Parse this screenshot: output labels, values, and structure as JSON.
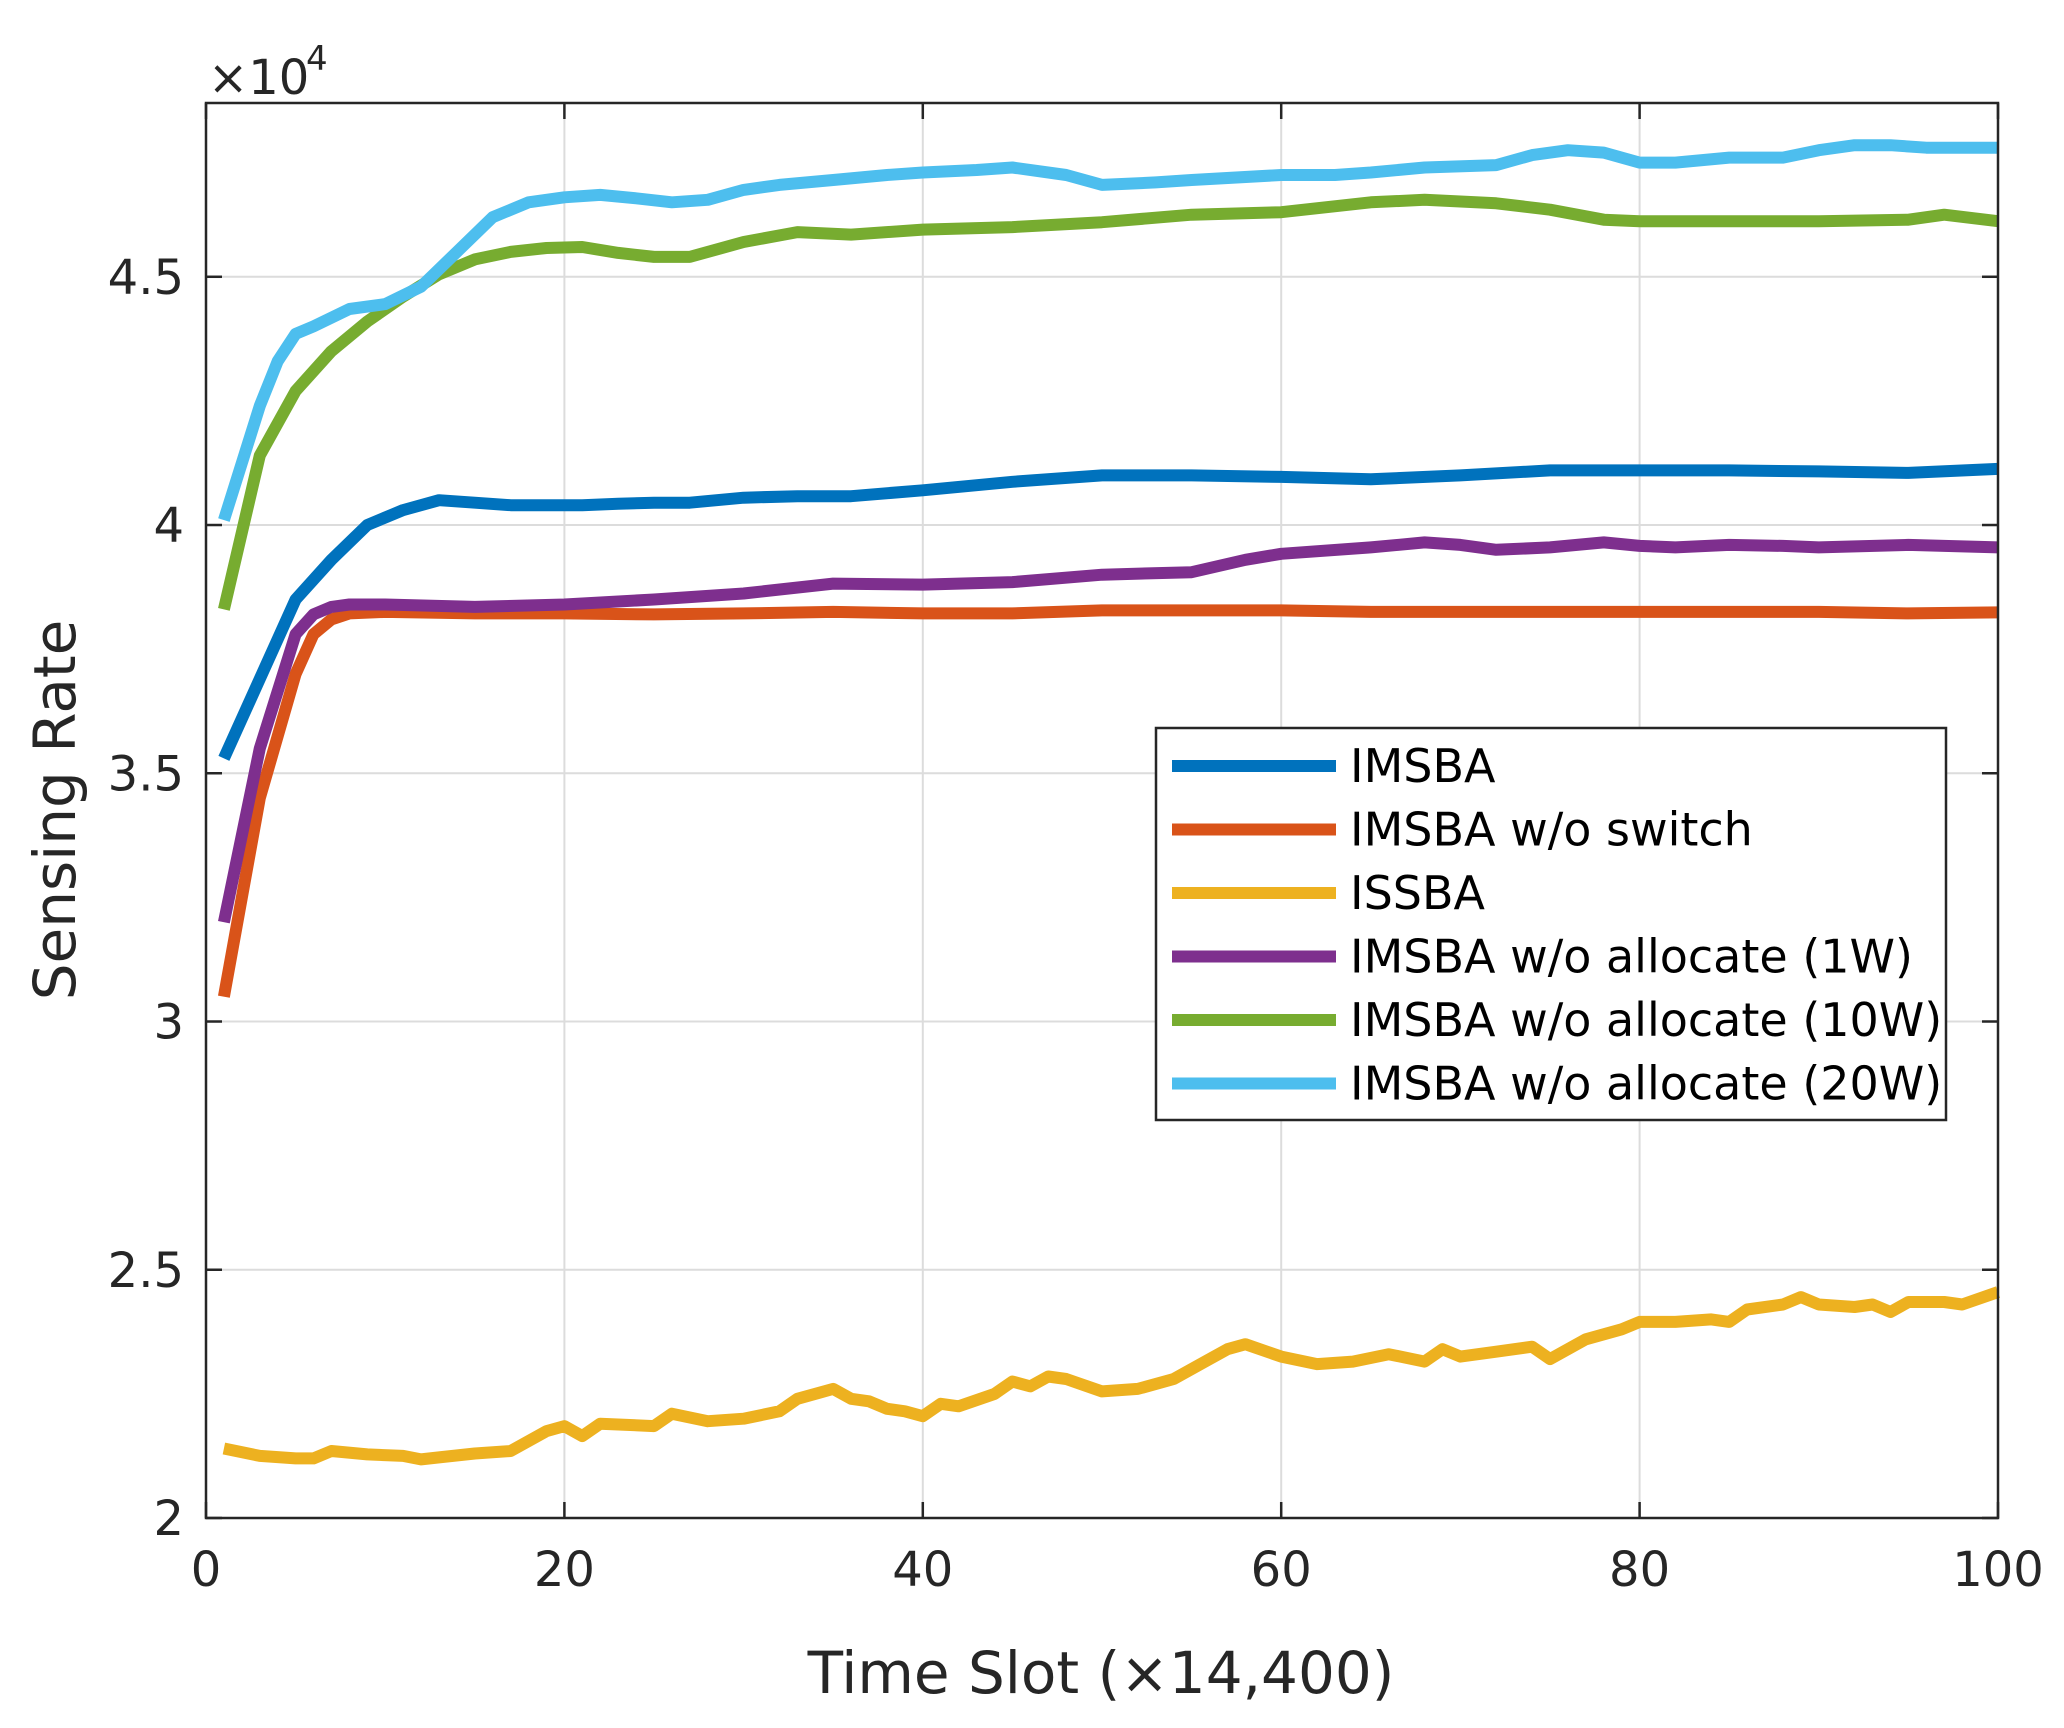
{
  "chart_data": {
    "type": "line",
    "title": "",
    "xlabel": "Time Slot (×14,400)",
    "ylabel": "Sensing Rate",
    "y_multiplier_label": "×10",
    "y_multiplier_exponent": "4",
    "xlim": [
      0,
      100
    ],
    "ylim": [
      2,
      4.85
    ],
    "xticks": [
      0,
      20,
      40,
      60,
      80,
      100
    ],
    "xtick_labels": [
      "0",
      "20",
      "40",
      "60",
      "80",
      "100"
    ],
    "yticks": [
      2,
      2.5,
      3,
      3.5,
      4,
      4.5
    ],
    "ytick_labels": [
      "2",
      "2.5",
      "3",
      "3.5",
      "4",
      "4.5"
    ],
    "grid": true,
    "legend_position": "center-right",
    "series": [
      {
        "name": "IMSBA",
        "color": "#0072BD",
        "x": [
          1,
          3,
          5,
          7,
          9,
          11,
          13,
          15,
          17,
          19,
          21,
          23,
          25,
          27,
          30,
          33,
          36,
          40,
          45,
          50,
          55,
          60,
          65,
          70,
          75,
          80,
          85,
          90,
          95,
          100
        ],
        "values": [
          3.53,
          3.69,
          3.85,
          3.93,
          4.0,
          4.03,
          4.05,
          4.045,
          4.04,
          4.04,
          4.04,
          4.043,
          4.045,
          4.045,
          4.055,
          4.058,
          4.058,
          4.07,
          4.087,
          4.1,
          4.1,
          4.097,
          4.092,
          4.1,
          4.11,
          4.11,
          4.11,
          4.108,
          4.105,
          4.113
        ]
      },
      {
        "name": "IMSBA w/o switch",
        "color": "#D95319",
        "x": [
          1,
          3,
          5,
          6,
          7,
          8,
          10,
          15,
          20,
          25,
          30,
          35,
          40,
          45,
          50,
          55,
          60,
          65,
          70,
          75,
          80,
          85,
          90,
          95,
          100
        ],
        "values": [
          3.05,
          3.45,
          3.7,
          3.78,
          3.81,
          3.822,
          3.825,
          3.822,
          3.822,
          3.82,
          3.822,
          3.825,
          3.822,
          3.822,
          3.828,
          3.828,
          3.828,
          3.825,
          3.825,
          3.825,
          3.825,
          3.825,
          3.825,
          3.822,
          3.824
        ]
      },
      {
        "name": "ISSBA",
        "color": "#EDB120",
        "x": [
          1,
          3,
          5,
          6,
          7,
          9,
          11,
          12,
          13,
          15,
          17,
          19,
          20,
          21,
          22,
          25,
          26,
          28,
          30,
          32,
          33,
          35,
          36,
          37,
          38,
          39,
          40,
          41,
          42,
          44,
          45,
          46,
          47,
          48,
          50,
          52,
          54,
          56,
          57,
          58,
          60,
          62,
          64,
          66,
          68,
          69,
          70,
          72,
          74,
          75,
          77,
          79,
          80,
          82,
          84,
          85,
          86,
          88,
          89,
          90,
          92,
          93,
          94,
          95,
          96,
          97,
          98,
          100
        ],
        "values": [
          2.14,
          2.125,
          2.12,
          2.12,
          2.135,
          2.128,
          2.125,
          2.118,
          2.122,
          2.13,
          2.135,
          2.175,
          2.185,
          2.165,
          2.19,
          2.185,
          2.21,
          2.195,
          2.2,
          2.215,
          2.24,
          2.26,
          2.24,
          2.235,
          2.22,
          2.215,
          2.205,
          2.23,
          2.225,
          2.25,
          2.275,
          2.265,
          2.285,
          2.28,
          2.255,
          2.26,
          2.28,
          2.32,
          2.34,
          2.35,
          2.325,
          2.31,
          2.315,
          2.33,
          2.315,
          2.34,
          2.325,
          2.335,
          2.345,
          2.32,
          2.36,
          2.38,
          2.395,
          2.395,
          2.4,
          2.395,
          2.42,
          2.43,
          2.445,
          2.43,
          2.425,
          2.43,
          2.415,
          2.435,
          2.435,
          2.435,
          2.43,
          2.455
        ]
      },
      {
        "name": "IMSBA w/o allocate (1W)",
        "color": "#7E2F8E",
        "x": [
          1,
          3,
          5,
          6,
          7,
          8,
          10,
          15,
          20,
          25,
          30,
          35,
          40,
          45,
          50,
          55,
          58,
          60,
          65,
          68,
          70,
          72,
          75,
          78,
          80,
          82,
          85,
          88,
          90,
          95,
          100
        ],
        "values": [
          3.2,
          3.55,
          3.78,
          3.82,
          3.835,
          3.84,
          3.84,
          3.835,
          3.84,
          3.85,
          3.862,
          3.882,
          3.88,
          3.885,
          3.9,
          3.905,
          3.93,
          3.942,
          3.955,
          3.965,
          3.96,
          3.95,
          3.955,
          3.965,
          3.958,
          3.955,
          3.96,
          3.958,
          3.955,
          3.96,
          3.955
        ]
      },
      {
        "name": "IMSBA w/o allocate (10W)",
        "color": "#77AC30",
        "x": [
          1,
          3,
          5,
          7,
          9,
          11,
          13,
          15,
          17,
          19,
          21,
          23,
          25,
          27,
          30,
          33,
          36,
          40,
          45,
          50,
          55,
          60,
          65,
          68,
          72,
          75,
          78,
          80,
          85,
          90,
          95,
          97,
          100
        ],
        "values": [
          3.83,
          4.14,
          4.27,
          4.35,
          4.41,
          4.46,
          4.505,
          4.535,
          4.55,
          4.558,
          4.56,
          4.548,
          4.54,
          4.54,
          4.57,
          4.59,
          4.585,
          4.595,
          4.6,
          4.61,
          4.625,
          4.63,
          4.65,
          4.655,
          4.648,
          4.635,
          4.615,
          4.612,
          4.612,
          4.612,
          4.615,
          4.625,
          4.612
        ]
      },
      {
        "name": "IMSBA w/o allocate (20W)",
        "color": "#4DBEEE",
        "x": [
          1,
          3,
          4,
          5,
          6,
          8,
          10,
          12,
          14,
          16,
          18,
          20,
          22,
          24,
          26,
          28,
          30,
          32,
          35,
          38,
          40,
          43,
          45,
          48,
          50,
          53,
          55,
          60,
          63,
          65,
          68,
          72,
          74,
          76,
          78,
          80,
          82,
          85,
          88,
          90,
          92,
          94,
          96,
          100
        ],
        "values": [
          4.01,
          4.24,
          4.33,
          4.385,
          4.4,
          4.435,
          4.445,
          4.48,
          4.55,
          4.62,
          4.65,
          4.66,
          4.665,
          4.658,
          4.65,
          4.655,
          4.675,
          4.685,
          4.695,
          4.705,
          4.71,
          4.715,
          4.72,
          4.705,
          4.685,
          4.69,
          4.695,
          4.705,
          4.705,
          4.71,
          4.72,
          4.725,
          4.745,
          4.755,
          4.75,
          4.73,
          4.73,
          4.74,
          4.74,
          4.755,
          4.765,
          4.765,
          4.76,
          4.76
        ]
      }
    ]
  }
}
